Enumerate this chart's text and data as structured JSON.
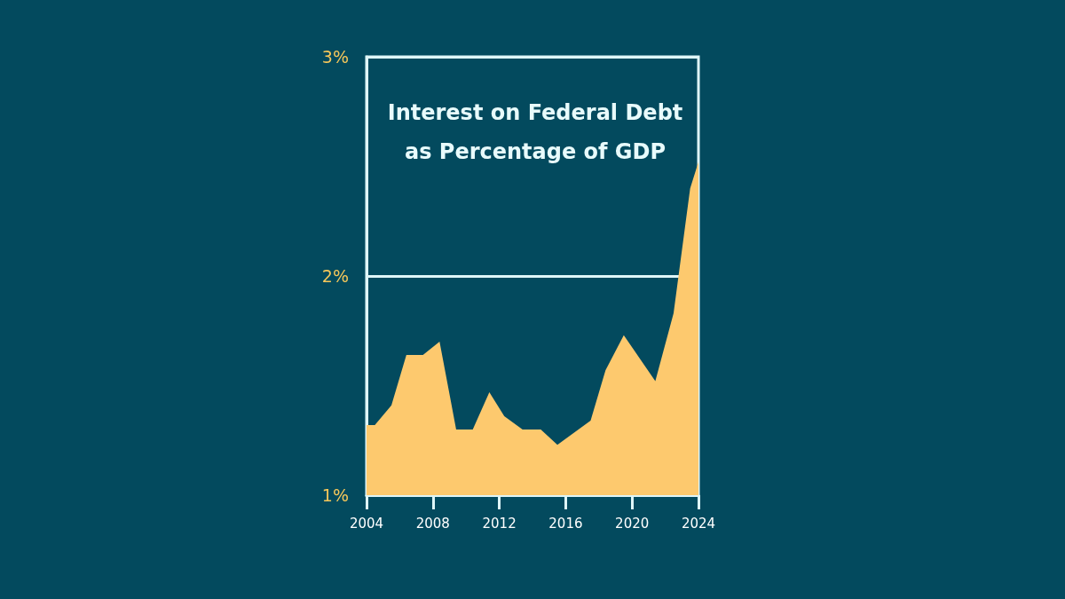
{
  "chart_data": {
    "type": "area",
    "title": "Interest on Federal Debt\nas Percentage of GDP",
    "x": [
      2004.0,
      2004.5,
      2005.5,
      2006.4,
      2007.4,
      2008.4,
      2009.4,
      2010.4,
      2011.4,
      2012.3,
      2013.4,
      2014.5,
      2015.5,
      2017.5,
      2018.4,
      2019.5,
      2021.4,
      2022.5,
      2023.5,
      2024.0
    ],
    "series": [
      {
        "color": "#fdc96e",
        "values": [
          1.32,
          1.32,
          1.41,
          1.64,
          1.64,
          1.7,
          1.3,
          1.3,
          1.47,
          1.36,
          1.3,
          1.3,
          1.23,
          1.34,
          1.57,
          1.73,
          1.52,
          1.83,
          2.4,
          2.52
        ]
      }
    ],
    "xlim": [
      2004,
      2024
    ],
    "xticks": [
      2004,
      2008,
      2012,
      2016,
      2020,
      2024
    ],
    "ylim": [
      1,
      3
    ],
    "yticks": [
      {
        "value": 1,
        "label": "1%"
      },
      {
        "value": 2,
        "label": "2%"
      },
      {
        "value": 3,
        "label": "3%"
      }
    ],
    "grid": "y",
    "marker": "none"
  }
}
